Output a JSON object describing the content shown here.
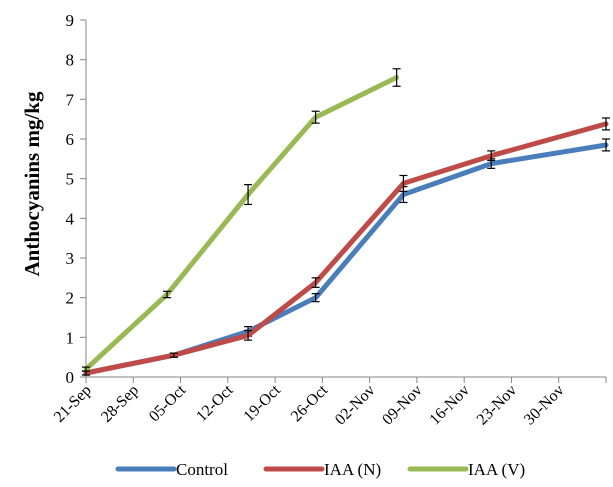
{
  "chart_data": {
    "type": "line",
    "title": "",
    "xlabel": "",
    "ylabel": "Anthocyanins mg/kg",
    "x_tick_labels": [
      "21-Sep",
      "28-Sep",
      "05-Oct",
      "12-Oct",
      "19-Oct",
      "26-Oct",
      "02-Nov",
      "09-Nov",
      "16-Nov",
      "23-Nov",
      "30-Nov"
    ],
    "y_ticks": [
      "0",
      "1",
      "2",
      "3",
      "4",
      "5",
      "6",
      "7",
      "8",
      "9"
    ],
    "ylim": [
      0,
      9
    ],
    "xlim": [
      "21-Sep",
      "07-Dec"
    ],
    "grid": false,
    "legend_position": "bottom",
    "series": [
      {
        "name": "Control",
        "color": "#4a7ebb",
        "x": [
          "21-Sep",
          "04-Oct",
          "15-Oct",
          "25-Oct",
          "07-Nov",
          "20-Nov",
          "07-Dec"
        ],
        "y": [
          0.1,
          0.55,
          1.15,
          2.0,
          4.6,
          5.38,
          5.85
        ],
        "err": [
          0.05,
          0.05,
          0.12,
          0.1,
          0.2,
          0.12,
          0.15
        ]
      },
      {
        "name": "IAA (N)",
        "color": "#be4b48",
        "x": [
          "21-Sep",
          "04-Oct",
          "15-Oct",
          "25-Oct",
          "07-Nov",
          "20-Nov",
          "07-Dec"
        ],
        "y": [
          0.1,
          0.55,
          1.05,
          2.38,
          4.88,
          5.58,
          6.38
        ],
        "err": [
          0.05,
          0.05,
          0.12,
          0.12,
          0.2,
          0.12,
          0.15
        ]
      },
      {
        "name": "IAA (V)",
        "color": "#98b954",
        "x": [
          "21-Sep",
          "03-Oct",
          "15-Oct",
          "25-Oct",
          "06-Nov"
        ],
        "y": [
          0.2,
          2.08,
          4.6,
          6.55,
          7.55
        ],
        "err": [
          0.05,
          0.08,
          0.25,
          0.15,
          0.22
        ]
      }
    ]
  }
}
